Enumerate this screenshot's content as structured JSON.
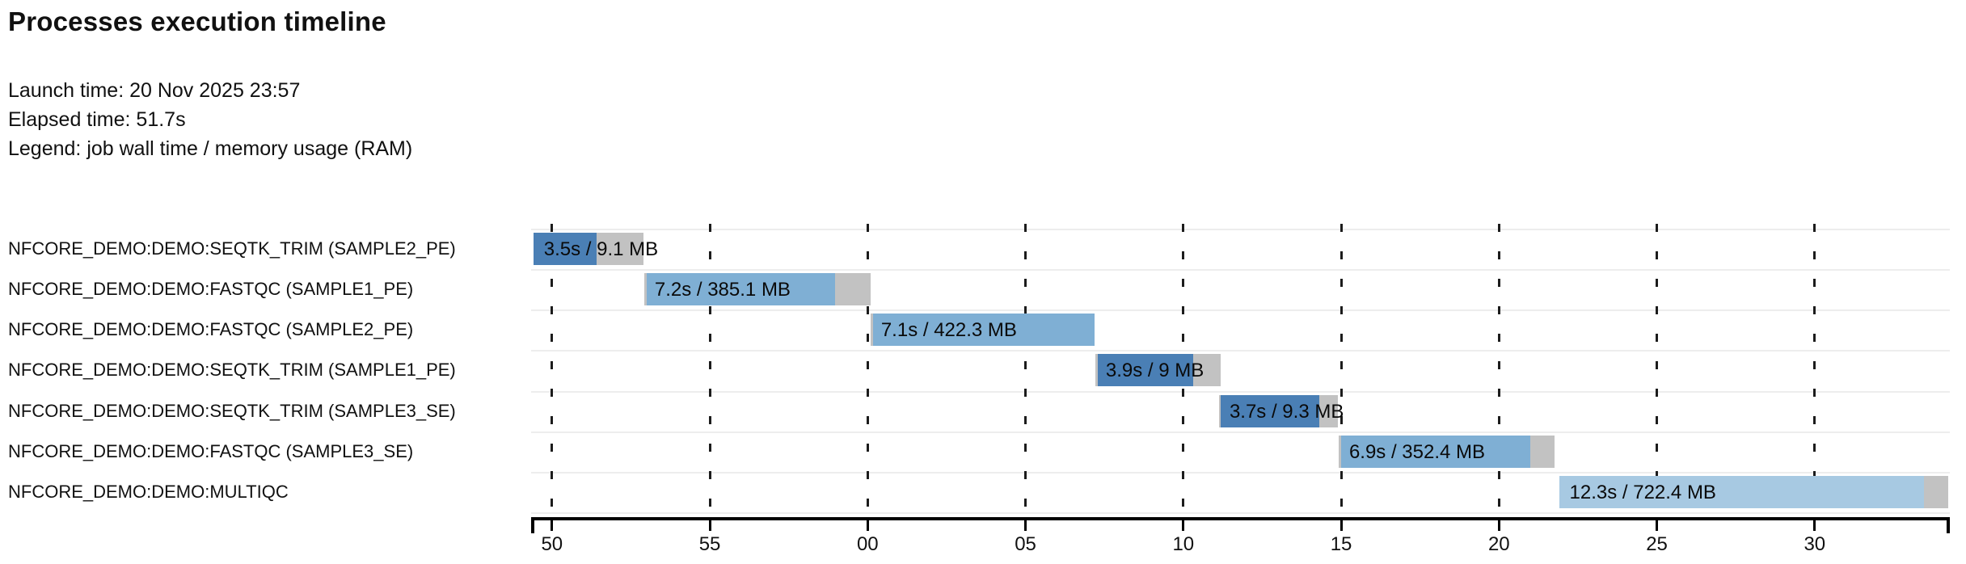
{
  "header": {
    "title": "Processes execution timeline",
    "launch_line": "Launch time: 20 Nov 2025 23:57",
    "elapsed_line": "Elapsed time: 51.7s",
    "legend_line": "Legend: job wall time / memory usage (RAM)"
  },
  "colors": {
    "seqtk_trim": "#4a7fb5",
    "fastqc": "#7fafd4",
    "multiqc": "#a7c9e2",
    "overhead_gray": "#c2c2c2",
    "row_separator": "#ededed",
    "axis": "#000000",
    "grid_dash": "#1c1c1c"
  },
  "chart_data": {
    "type": "timeline-gantt",
    "title": "Processes execution timeline",
    "launch_time": "20 Nov 2025 23:57",
    "elapsed_time": "51.7s",
    "legend": "job wall time / memory usage (RAM)",
    "x_axis": {
      "description": "clock seconds (mm:ss wrap at minute)",
      "min": 49.39,
      "max": 94.22,
      "grid": "dashed-vertical",
      "ticks": [
        {
          "t": 50,
          "label": "50"
        },
        {
          "t": 55,
          "label": "55"
        },
        {
          "t": 60,
          "label": "00"
        },
        {
          "t": 65,
          "label": "05"
        },
        {
          "t": 70,
          "label": "10"
        },
        {
          "t": 75,
          "label": "15"
        },
        {
          "t": 80,
          "label": "20"
        },
        {
          "t": 85,
          "label": "25"
        },
        {
          "t": 90,
          "label": "30"
        }
      ]
    },
    "tasks": [
      {
        "process": "NFCORE_DEMO:DEMO:SEQTK_TRIM (SAMPLE2_PE)",
        "label": "3.5s / 9.1 MB",
        "wall_time": "3.5s",
        "memory": "9.1 MB",
        "color": "seqtk_trim",
        "start": 49.41,
        "pre": 0.0,
        "run_end": 51.41,
        "end": 52.89
      },
      {
        "process": "NFCORE_DEMO:DEMO:FASTQC (SAMPLE1_PE)",
        "label": "7.2s / 385.1 MB",
        "wall_time": "7.2s",
        "memory": "385.1 MB",
        "color": "fastqc",
        "start": 52.92,
        "pre": 0.08,
        "run_end": 58.96,
        "end": 60.09
      },
      {
        "process": "NFCORE_DEMO:DEMO:FASTQC (SAMPLE2_PE)",
        "label": "7.1s / 422.3 MB",
        "wall_time": "7.1s",
        "memory": "422.3 MB",
        "color": "fastqc",
        "start": 60.09,
        "pre": 0.08,
        "run_end": 67.18,
        "end": 67.18
      },
      {
        "process": "NFCORE_DEMO:DEMO:SEQTK_TRIM (SAMPLE1_PE)",
        "label": "3.9s / 9 MB",
        "wall_time": "3.9s",
        "memory": "9 MB",
        "color": "seqtk_trim",
        "start": 67.21,
        "pre": 0.08,
        "run_end": 70.31,
        "end": 71.18
      },
      {
        "process": "NFCORE_DEMO:DEMO:SEQTK_TRIM (SAMPLE3_SE)",
        "label": "3.7s / 9.3 MB",
        "wall_time": "3.7s",
        "memory": "9.3 MB",
        "color": "seqtk_trim",
        "start": 71.13,
        "pre": 0.05,
        "run_end": 74.3,
        "end": 74.89
      },
      {
        "process": "NFCORE_DEMO:DEMO:FASTQC (SAMPLE3_SE)",
        "label": "6.9s / 352.4 MB",
        "wall_time": "6.9s",
        "memory": "352.4 MB",
        "color": "fastqc",
        "start": 74.92,
        "pre": 0.08,
        "run_end": 80.99,
        "end": 81.75
      },
      {
        "process": "NFCORE_DEMO:DEMO:MULTIQC",
        "label": "12.3s / 722.4 MB",
        "wall_time": "12.3s",
        "memory": "722.4 MB",
        "color": "multiqc",
        "start": 81.9,
        "pre": 0.0,
        "run_end": 93.45,
        "end": 94.22
      }
    ]
  }
}
